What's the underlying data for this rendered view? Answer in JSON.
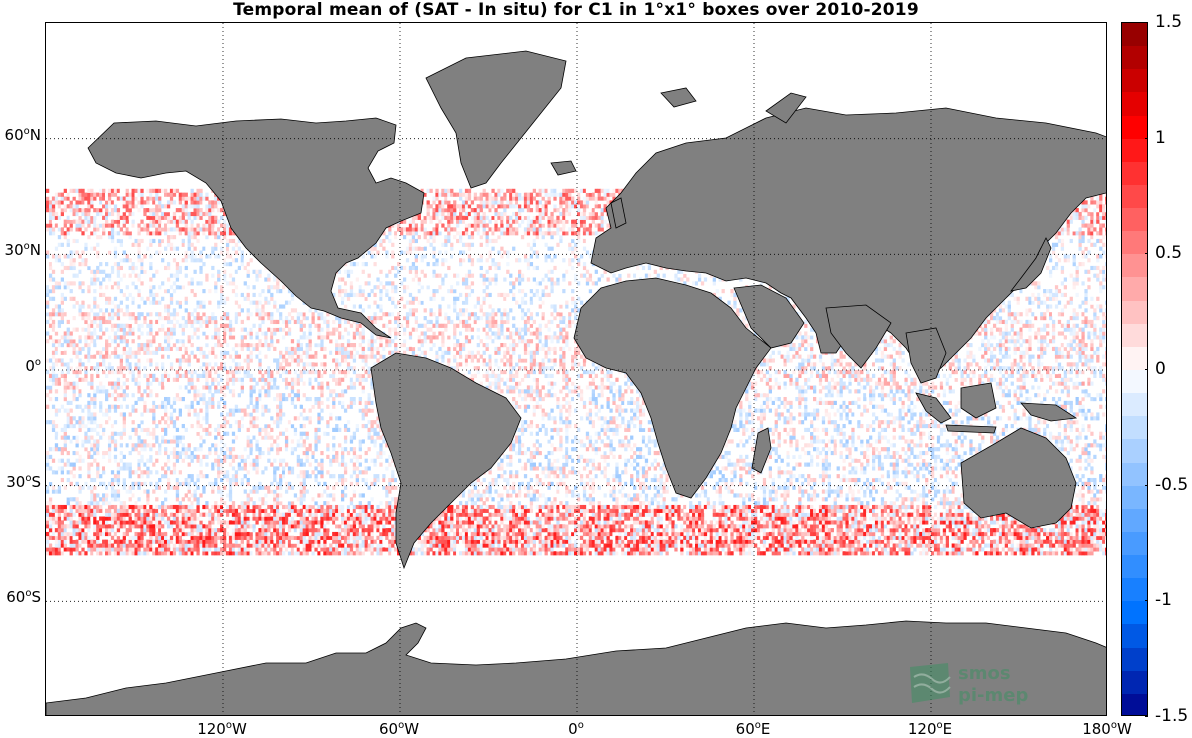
{
  "title": "Temporal mean of (SAT - In situ) for C1 in 1°x1° boxes over 2010-2019",
  "map": {
    "lon_range": [
      -180,
      180
    ],
    "lat_range": [
      -90,
      90
    ],
    "land_color": "#808080",
    "ocean_color": "#ffffff",
    "grid": "dotted",
    "lat_labels": [
      {
        "value": 60,
        "deg": "60",
        "hemi": "N"
      },
      {
        "value": 30,
        "deg": "30",
        "hemi": "N"
      },
      {
        "value": 0,
        "deg": "0",
        "hemi": ""
      },
      {
        "value": -30,
        "deg": "30",
        "hemi": "S"
      },
      {
        "value": -60,
        "deg": "60",
        "hemi": "S"
      }
    ],
    "lon_labels": [
      {
        "value": -120,
        "deg": "120",
        "hemi": "W"
      },
      {
        "value": -60,
        "deg": "60",
        "hemi": "W"
      },
      {
        "value": 0,
        "deg": "0",
        "hemi": ""
      },
      {
        "value": 60,
        "deg": "60",
        "hemi": "E"
      },
      {
        "value": 120,
        "deg": "120",
        "hemi": "E"
      },
      {
        "value": 180,
        "deg": "180",
        "hemi": "W"
      }
    ]
  },
  "colorbar": {
    "min": -1.5,
    "max": 1.5,
    "levels": 30,
    "negative_color": "#00008b",
    "positive_color": "#8b0000",
    "tick_labels": [
      "1.5",
      "1",
      "0.5",
      "0",
      "-0.5",
      "-1",
      "-1.5"
    ],
    "tick_values": [
      1.5,
      1,
      0.5,
      0,
      -0.5,
      -1,
      -1.5
    ]
  },
  "logo": {
    "line1": "smos",
    "line2": "pi-mep",
    "color": "#3f8f63"
  }
}
